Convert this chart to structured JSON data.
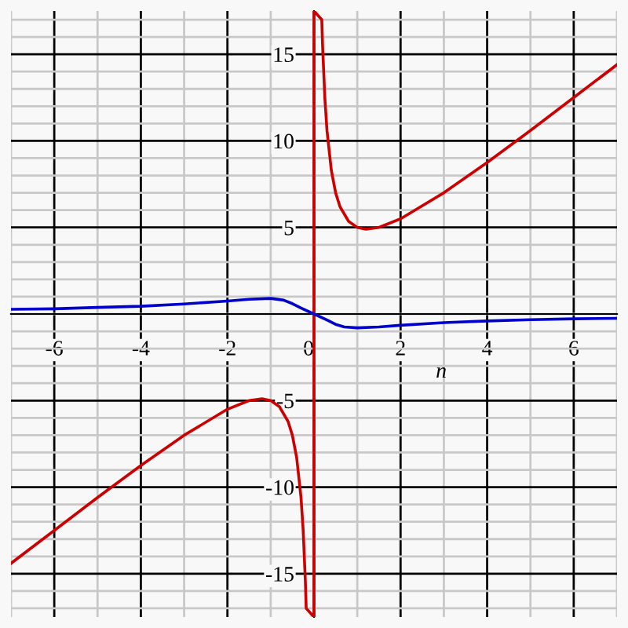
{
  "chart_data": {
    "type": "line",
    "xlabel": "n",
    "series": [
      {
        "color": "#cc0000",
        "x": [
          -7,
          -6,
          -5,
          -4,
          -3,
          -2,
          -1.5,
          -1.2,
          -1,
          -0.8,
          -0.6,
          -0.5,
          -0.4,
          -0.3,
          -0.25,
          -0.2,
          -0.18,
          0,
          0,
          0.18,
          0.2,
          0.25,
          0.3,
          0.4,
          0.5,
          0.6,
          0.8,
          1,
          1.2,
          1.5,
          2,
          3,
          4,
          5,
          6,
          7
        ],
        "values": [
          -14.4,
          -12.5,
          -10.6,
          -8.75,
          -7,
          -5.5,
          -5,
          -4.9,
          -5,
          -5.35,
          -6.2,
          -7,
          -8.3,
          -10.6,
          -12.5,
          -15.4,
          -17,
          -17.5,
          17.5,
          17,
          15.4,
          12.5,
          10.6,
          8.3,
          7,
          6.2,
          5.35,
          5,
          4.9,
          5,
          5.5,
          7,
          8.75,
          10.6,
          12.5,
          14.4
        ]
      },
      {
        "color": "#0000cc",
        "x": [
          -7,
          -6,
          -5,
          -4,
          -3,
          -2,
          -1.5,
          -1,
          -0.7,
          -0.5,
          -0.3,
          0,
          0.3,
          0.5,
          0.7,
          1,
          1.5,
          2,
          3,
          4,
          5,
          6,
          7
        ],
        "values": [
          0.27,
          0.3,
          0.38,
          0.45,
          0.58,
          0.75,
          0.85,
          0.9,
          0.8,
          0.6,
          0.35,
          0,
          -0.35,
          -0.6,
          -0.75,
          -0.8,
          -0.75,
          -0.65,
          -0.5,
          -0.4,
          -0.33,
          -0.28,
          -0.25
        ]
      }
    ],
    "xlim": [
      -7,
      7
    ],
    "ylim": [
      -17.5,
      17.5
    ],
    "xticks": [
      -6,
      -4,
      -2,
      0,
      2,
      4,
      6
    ],
    "yticks": [
      -15,
      -10,
      -5,
      5,
      10,
      15
    ],
    "grid": true,
    "marker": "none",
    "line_style": "solid"
  }
}
